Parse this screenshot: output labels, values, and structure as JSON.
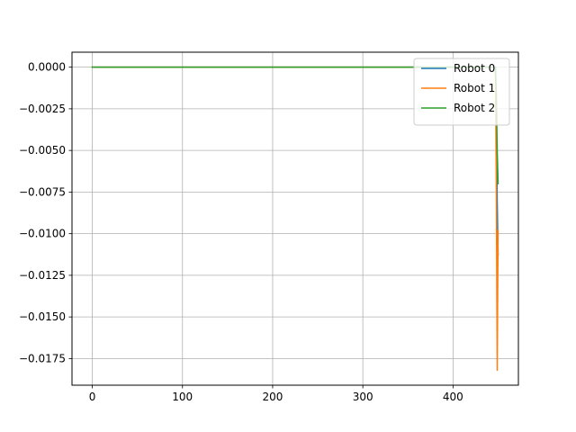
{
  "chart_data": {
    "type": "line",
    "title": "",
    "xlabel": "",
    "ylabel": "",
    "xlim": [
      -22.5,
      472.5
    ],
    "ylim": [
      -0.0191,
      0.0009
    ],
    "xticks": [
      0,
      100,
      200,
      300,
      400
    ],
    "xtick_labels": [
      "0",
      "100",
      "200",
      "300",
      "400"
    ],
    "yticks": [
      0.0,
      -0.0025,
      -0.005,
      -0.0075,
      -0.01,
      -0.0125,
      -0.015,
      -0.0175
    ],
    "ytick_labels": [
      "0.0000",
      "−0.0025",
      "−0.0050",
      "−0.0075",
      "−0.0100",
      "−0.0125",
      "−0.0150",
      "−0.0175"
    ],
    "grid": true,
    "legend_position": "top-right",
    "series": [
      {
        "name": "Robot 0",
        "color": "#1f77b4",
        "x": [
          0,
          100,
          200,
          300,
          400,
          447,
          448,
          449,
          450
        ],
        "y": [
          0,
          0,
          0,
          0,
          0,
          0,
          -0.003,
          -0.008,
          -0.0113
        ]
      },
      {
        "name": "Robot 1",
        "color": "#ff7f0e",
        "x": [
          0,
          100,
          200,
          300,
          400,
          447,
          448,
          449,
          450
        ],
        "y": [
          0,
          0,
          0,
          0,
          0,
          0,
          -0.007,
          -0.0182,
          -0.0098
        ]
      },
      {
        "name": "Robot 2",
        "color": "#2ca02c",
        "x": [
          0,
          100,
          200,
          300,
          400,
          447,
          448,
          449,
          450
        ],
        "y": [
          0,
          0,
          0,
          0,
          0,
          0,
          -0.0015,
          -0.005,
          -0.007
        ]
      }
    ]
  }
}
